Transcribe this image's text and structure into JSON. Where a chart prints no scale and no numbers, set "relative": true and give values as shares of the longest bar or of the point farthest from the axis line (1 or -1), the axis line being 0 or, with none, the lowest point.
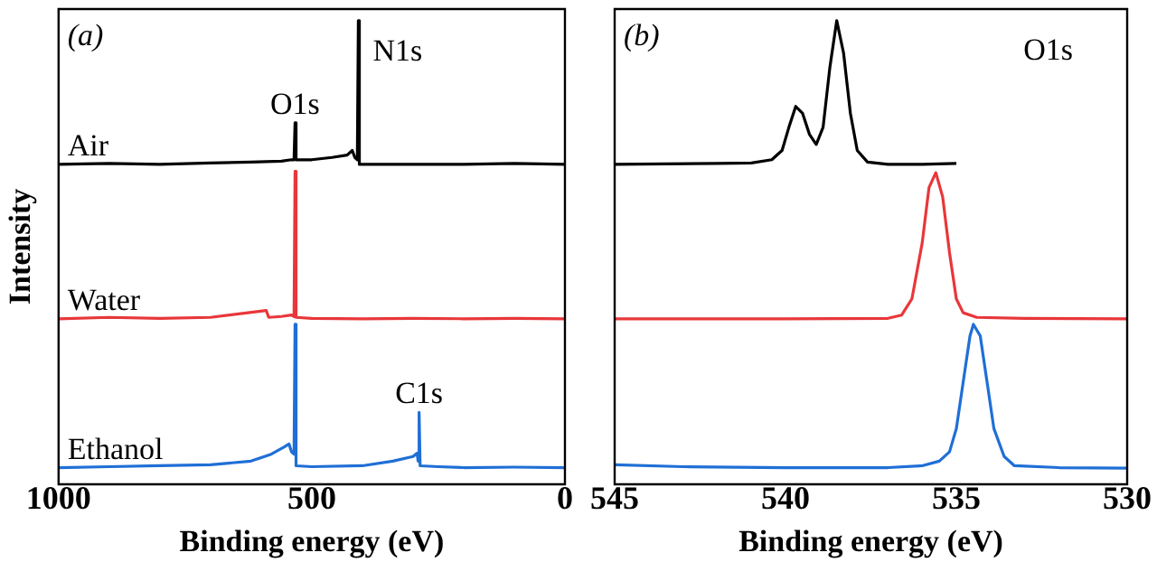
{
  "chart_data": [
    {
      "type": "line",
      "relative": true,
      "xlim": [
        1000,
        0
      ],
      "xticks": [
        1000,
        500,
        0
      ],
      "xlabel": "Binding energy (eV)",
      "ylabel": "Intensity",
      "legend": false,
      "grid": false,
      "marker": "none",
      "annotations": [
        "(a)",
        {
          "text": "O1s",
          "x": 533,
          "y": 0.78
        },
        {
          "text": "N1s",
          "x": 408,
          "y": 1.0
        },
        {
          "text": "C1s",
          "x": 288,
          "y": 0.155
        }
      ],
      "series": [
        {
          "name": "Air",
          "color": "#000000",
          "x": [
            1000,
            900,
            800,
            700,
            620,
            560,
            540,
            535,
            533,
            531,
            500,
            460,
            430,
            420,
            415,
            410,
            408,
            406,
            380,
            300,
            200,
            100,
            0
          ],
          "values": [
            0.69,
            0.692,
            0.69,
            0.693,
            0.695,
            0.697,
            0.7,
            0.7,
            0.78,
            0.7,
            0.7,
            0.705,
            0.71,
            0.72,
            0.705,
            0.7,
            1.0,
            0.69,
            0.69,
            0.69,
            0.69,
            0.692,
            0.69
          ]
        },
        {
          "name": "Water",
          "color": "#e8373a",
          "x": [
            1000,
            900,
            800,
            700,
            590,
            585,
            560,
            540,
            535,
            533,
            531,
            500,
            400,
            300,
            200,
            100,
            0
          ],
          "values": [
            0.357,
            0.36,
            0.358,
            0.36,
            0.375,
            0.36,
            0.362,
            0.365,
            0.362,
            0.675,
            0.36,
            0.358,
            0.357,
            0.358,
            0.357,
            0.358,
            0.357
          ]
        },
        {
          "name": "Ethanol",
          "color": "#1f6fd6",
          "x": [
            1000,
            900,
            800,
            700,
            620,
            580,
            555,
            545,
            540,
            535,
            533,
            531,
            500,
            400,
            340,
            300,
            292,
            290,
            288,
            286,
            250,
            200,
            100,
            0
          ],
          "values": [
            0.036,
            0.038,
            0.04,
            0.042,
            0.05,
            0.065,
            0.08,
            0.087,
            0.07,
            0.065,
            0.345,
            0.04,
            0.038,
            0.04,
            0.05,
            0.06,
            0.067,
            0.05,
            0.155,
            0.04,
            0.038,
            0.036,
            0.037,
            0.036
          ]
        }
      ]
    },
    {
      "type": "line",
      "relative": true,
      "xlim": [
        545,
        530
      ],
      "xticks": [
        545,
        540,
        535,
        530
      ],
      "xlabel": "Binding energy (eV)",
      "legend": false,
      "grid": false,
      "marker": "none",
      "annotations": [
        "(b)",
        "O1s"
      ],
      "series": [
        {
          "color": "#000000",
          "x": [
            545,
            542,
            541,
            540.4,
            540.1,
            539.9,
            539.7,
            539.5,
            539.3,
            539.1,
            538.9,
            538.7,
            538.5,
            538.3,
            538.1,
            537.9,
            537.6,
            537,
            536,
            535
          ],
          "values": [
            0.69,
            0.692,
            0.693,
            0.7,
            0.72,
            0.77,
            0.815,
            0.8,
            0.755,
            0.733,
            0.77,
            0.9,
            1.0,
            0.93,
            0.8,
            0.72,
            0.695,
            0.69,
            0.69,
            0.692
          ]
        },
        {
          "color": "#e8373a",
          "x": [
            545,
            540,
            537,
            536.6,
            536.3,
            536.0,
            535.8,
            535.6,
            535.4,
            535.2,
            535.0,
            534.8,
            534.4,
            533,
            530
          ],
          "values": [
            0.357,
            0.357,
            0.358,
            0.365,
            0.4,
            0.52,
            0.64,
            0.672,
            0.62,
            0.5,
            0.4,
            0.37,
            0.36,
            0.358,
            0.357
          ]
        },
        {
          "color": "#1f6fd6",
          "x": [
            545,
            543,
            540,
            537,
            536,
            535.5,
            535.2,
            535.0,
            534.8,
            534.6,
            534.5,
            534.3,
            534.1,
            533.9,
            533.6,
            533.3,
            532,
            530
          ],
          "values": [
            0.042,
            0.038,
            0.036,
            0.036,
            0.04,
            0.05,
            0.07,
            0.12,
            0.22,
            0.32,
            0.345,
            0.32,
            0.22,
            0.12,
            0.06,
            0.04,
            0.036,
            0.035
          ]
        }
      ]
    }
  ]
}
